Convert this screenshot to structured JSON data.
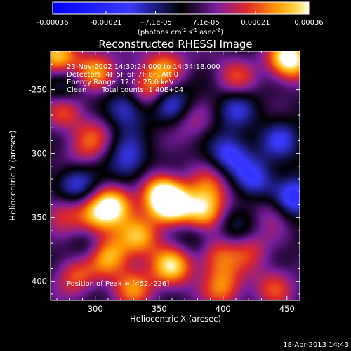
{
  "chart_data": {
    "type": "heatmap",
    "title": "Reconstructed RHESSI Image",
    "xlabel": "Heliocentric X (arcsec)",
    "ylabel": "Heliocentric Y (arcsec)",
    "xlim": [
      265,
      460
    ],
    "ylim": [
      -415,
      -220
    ],
    "x_ticks": [
      300,
      350,
      400,
      450
    ],
    "y_ticks": [
      -250,
      -300,
      -350,
      -400
    ],
    "colorbar": {
      "ticks": [
        "-0.00036",
        "-0.00021",
        "−7.1e-05",
        "7.1e-05",
        "0.00021",
        "0.00036"
      ],
      "tick_values": [
        -0.00036,
        -0.00021,
        -7.1e-05,
        7.1e-05,
        0.00021,
        0.00036
      ],
      "units_base": "(photons cm",
      "units_exp1": "-2",
      "units_mid": " s",
      "units_exp2": "-1",
      "units_mid2": " asec",
      "units_exp3": "-2",
      "units_end": ")",
      "range": [
        -0.00036,
        0.00036
      ]
    },
    "annotations": {
      "line1": "23-Nov-2002 14:30:24.000 to 14:34:18.000",
      "line2": "Detectors: 4F 5F 6F 7F 8F, Att 0",
      "line3": "Energy Range: 12.0 - 25.0 keV",
      "line4_a": "Clean",
      "line4_b": "Total counts: 1.40E+04",
      "peak": "Position of Peak = [452,-226]"
    },
    "colors": {
      "neg_high": "#1a1aff",
      "zero": "#000000",
      "pos_low": "#7a1e9e",
      "pos_mid": "#e02828",
      "pos_high": "#ffd200",
      "pos_max": "#ffffe0"
    },
    "sources": [
      {
        "x": 452,
        "y": -226,
        "value": 0.00036
      },
      {
        "x": 270,
        "y": -225,
        "value": 0.00025
      },
      {
        "x": 300,
        "y": -235,
        "value": 0.00022
      },
      {
        "x": 355,
        "y": -232,
        "value": 0.0002
      },
      {
        "x": 410,
        "y": -240,
        "value": 0.00015
      },
      {
        "x": 340,
        "y": -250,
        "value": 0.0002
      },
      {
        "x": 275,
        "y": -265,
        "value": 0.00018
      },
      {
        "x": 300,
        "y": -285,
        "value": 0.00012
      },
      {
        "x": 375,
        "y": -275,
        "value": 0.0001
      },
      {
        "x": 290,
        "y": -300,
        "value": 0.0001
      },
      {
        "x": 350,
        "y": -330,
        "value": 0.00024
      },
      {
        "x": 390,
        "y": -325,
        "value": 0.00015
      },
      {
        "x": 315,
        "y": -340,
        "value": 0.0003
      },
      {
        "x": 360,
        "y": -340,
        "value": 0.00032
      },
      {
        "x": 385,
        "y": -345,
        "value": 0.0003
      },
      {
        "x": 300,
        "y": -350,
        "value": 0.0002
      },
      {
        "x": 275,
        "y": -345,
        "value": 0.00015
      },
      {
        "x": 335,
        "y": -365,
        "value": 0.00022
      },
      {
        "x": 440,
        "y": -345,
        "value": 0.00012
      },
      {
        "x": 310,
        "y": -380,
        "value": 0.00026
      },
      {
        "x": 360,
        "y": -388,
        "value": 0.00028
      },
      {
        "x": 395,
        "y": -380,
        "value": 0.00018
      },
      {
        "x": 420,
        "y": -375,
        "value": 0.00014
      },
      {
        "x": 330,
        "y": -405,
        "value": 0.0002
      },
      {
        "x": 285,
        "y": -395,
        "value": 0.00018
      },
      {
        "x": 400,
        "y": -405,
        "value": 0.0002
      },
      {
        "x": 440,
        "y": -405,
        "value": 0.00015
      },
      {
        "x": 325,
        "y": -265,
        "value": -0.0002
      },
      {
        "x": 360,
        "y": -260,
        "value": -0.00018
      },
      {
        "x": 410,
        "y": -265,
        "value": -0.00015
      },
      {
        "x": 275,
        "y": -250,
        "value": -0.00015
      },
      {
        "x": 325,
        "y": -300,
        "value": -0.00012
      },
      {
        "x": 405,
        "y": -300,
        "value": -0.0002
      },
      {
        "x": 445,
        "y": -290,
        "value": -0.00016
      },
      {
        "x": 285,
        "y": -325,
        "value": -0.0002
      },
      {
        "x": 425,
        "y": -320,
        "value": -0.00018
      },
      {
        "x": 455,
        "y": -335,
        "value": -0.00025
      },
      {
        "x": 325,
        "y": -315,
        "value": -0.0001
      },
      {
        "x": 380,
        "y": -365,
        "value": -0.00012
      },
      {
        "x": 410,
        "y": -355,
        "value": -0.0001
      },
      {
        "x": 295,
        "y": -375,
        "value": -0.0001
      }
    ]
  },
  "footer": {
    "timestamp": "18-Apr-2013 14:43"
  }
}
